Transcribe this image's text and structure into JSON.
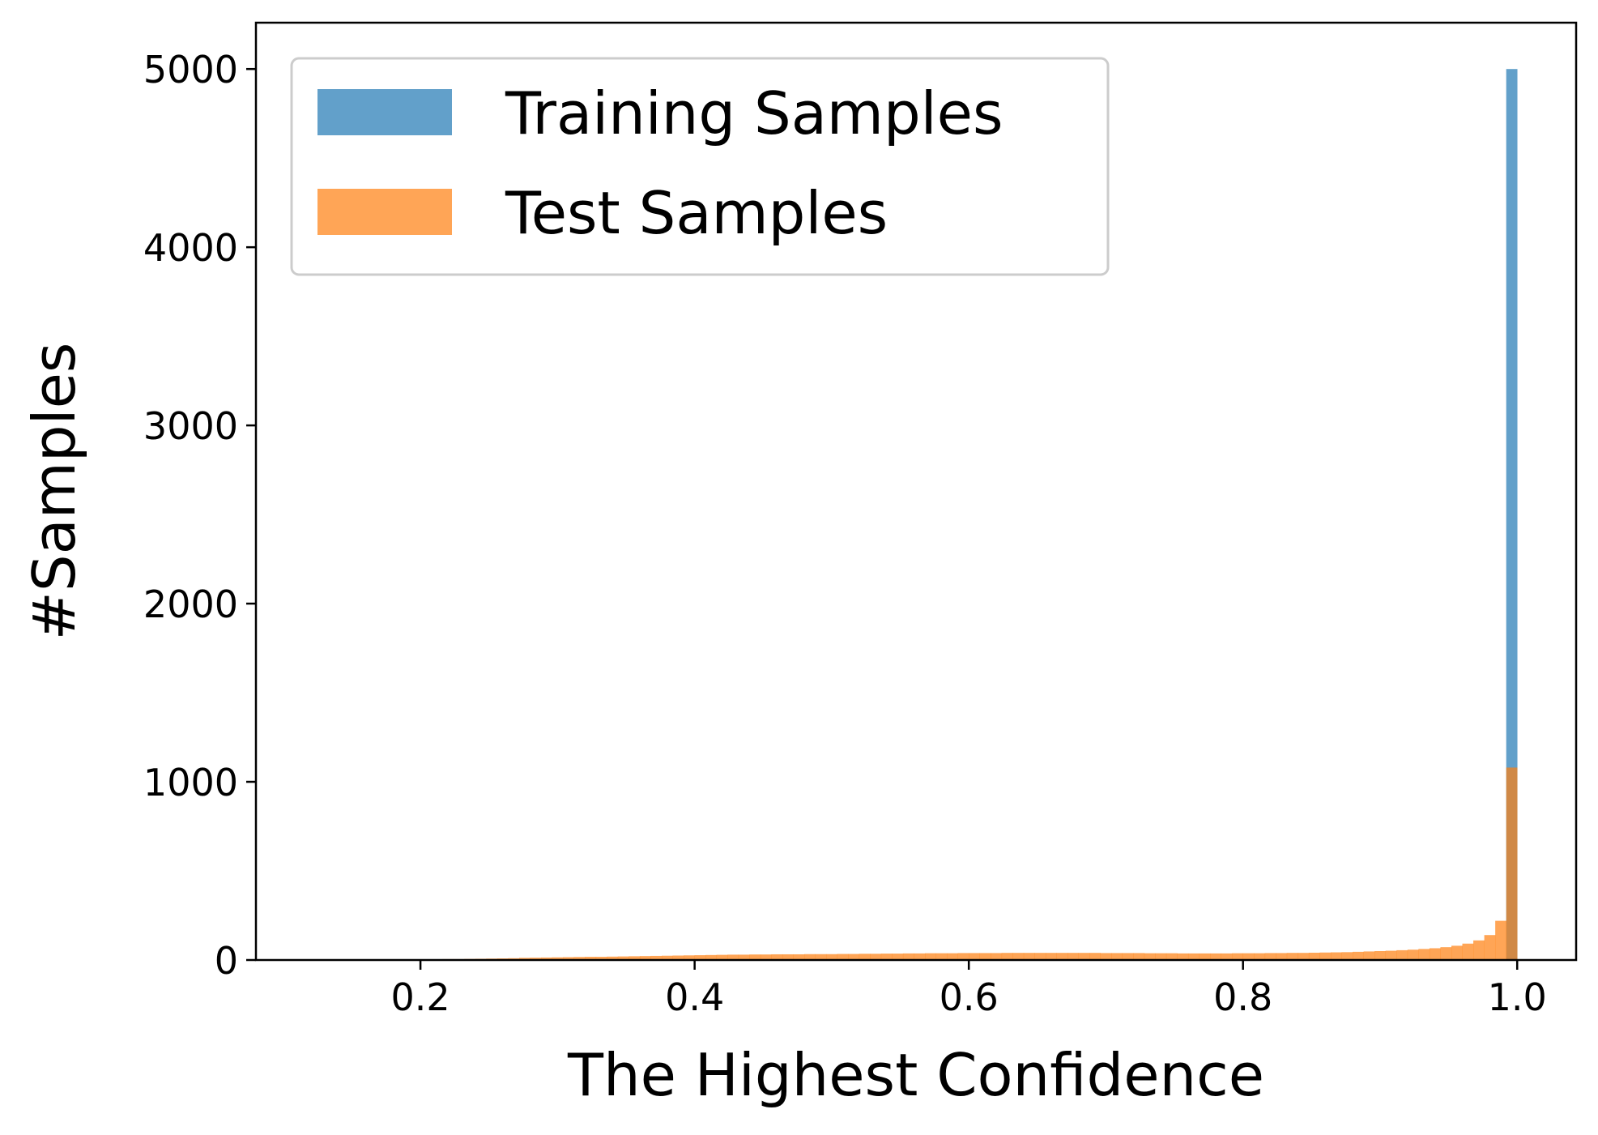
{
  "chart_data": {
    "type": "histogram",
    "xlabel": "The Highest Confidence",
    "ylabel": "#Samples",
    "xlim": [
      0.08,
      1.043
    ],
    "ylim": [
      0,
      5260
    ],
    "xticks": [
      {
        "value": 0.2,
        "label": "0.2"
      },
      {
        "value": 0.4,
        "label": "0.4"
      },
      {
        "value": 0.6,
        "label": "0.6"
      },
      {
        "value": 0.8,
        "label": "0.8"
      },
      {
        "value": 1.0,
        "label": "1.0"
      }
    ],
    "yticks": [
      {
        "value": 0,
        "label": "0"
      },
      {
        "value": 1000,
        "label": "1000"
      },
      {
        "value": 2000,
        "label": "2000"
      },
      {
        "value": 3000,
        "label": "3000"
      },
      {
        "value": 4000,
        "label": "4000"
      },
      {
        "value": 5000,
        "label": "5000"
      }
    ],
    "grid": false,
    "legend_position": "top-left",
    "bins": {
      "start": 0.2,
      "end": 1.0,
      "count": 100
    },
    "series": [
      {
        "name": "Training Samples",
        "color": "#1f77b4",
        "opacity": 0.7,
        "counts": [
          0,
          0,
          0,
          0,
          0,
          0,
          0,
          0,
          0,
          0,
          0,
          0,
          0,
          0,
          0,
          0,
          0,
          0,
          0,
          0,
          0,
          0,
          0,
          0,
          0,
          0,
          0,
          0,
          0,
          0,
          0,
          0,
          0,
          0,
          0,
          0,
          0,
          0,
          0,
          0,
          0,
          0,
          0,
          0,
          0,
          0,
          0,
          0,
          0,
          0,
          0,
          0,
          0,
          0,
          0,
          0,
          0,
          0,
          0,
          0,
          0,
          0,
          0,
          0,
          0,
          0,
          0,
          0,
          0,
          0,
          0,
          0,
          0,
          0,
          0,
          0,
          0,
          0,
          0,
          0,
          0,
          0,
          0,
          0,
          0,
          0,
          0,
          0,
          0,
          0,
          0,
          0,
          0,
          0,
          0,
          0,
          0,
          0,
          0,
          5000
        ]
      },
      {
        "name": "Test Samples",
        "color": "#ff7f0e",
        "opacity": 0.7,
        "counts": [
          3,
          4,
          5,
          5,
          6,
          7,
          8,
          9,
          10,
          12,
          13,
          14,
          15,
          16,
          17,
          18,
          18,
          19,
          20,
          21,
          22,
          23,
          24,
          25,
          26,
          27,
          28,
          29,
          30,
          30,
          31,
          31,
          32,
          32,
          32,
          33,
          33,
          33,
          34,
          34,
          35,
          35,
          36,
          36,
          37,
          37,
          38,
          38,
          38,
          39,
          39,
          39,
          39,
          40,
          40,
          40,
          40,
          40,
          40,
          40,
          40,
          40,
          39,
          39,
          39,
          39,
          38,
          38,
          38,
          37,
          37,
          37,
          37,
          37,
          38,
          38,
          38,
          39,
          39,
          40,
          40,
          41,
          42,
          43,
          44,
          46,
          48,
          50,
          52,
          55,
          58,
          62,
          66,
          72,
          80,
          92,
          110,
          140,
          220,
          1080
        ]
      }
    ]
  }
}
